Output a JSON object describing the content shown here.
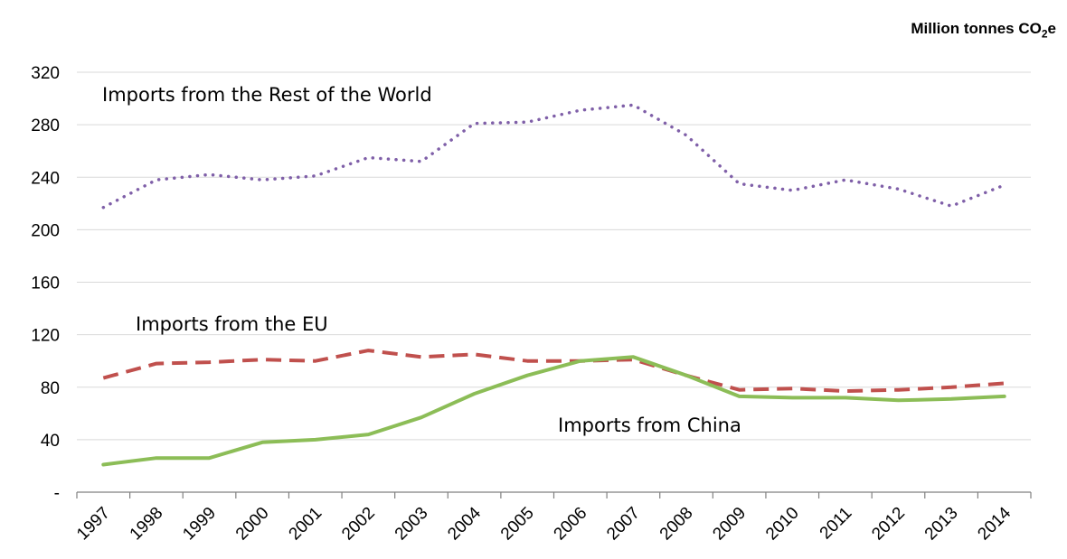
{
  "chart_data": {
    "type": "line",
    "unit_label_main": "Million tonnes CO",
    "unit_label_sub": "2",
    "unit_label_tail": "e",
    "categories": [
      "1997",
      "1998",
      "1999",
      "2000",
      "2001",
      "2002",
      "2003",
      "2004",
      "2005",
      "2006",
      "2007",
      "2008",
      "2009",
      "2010",
      "2011",
      "2012",
      "2013",
      "2014"
    ],
    "y_tick_labels": [
      "-",
      "40",
      "80",
      "120",
      "160",
      "200",
      "240",
      "280",
      "320"
    ],
    "ylim": [
      0,
      320
    ],
    "grid": true,
    "series": [
      {
        "name": "Imports from the Rest of the World",
        "color": "#7f5fa8",
        "style": "dotted",
        "values": [
          217,
          238,
          242,
          238,
          241,
          255,
          252,
          281,
          282,
          291,
          295,
          272,
          235,
          230,
          238,
          231,
          218,
          234
        ]
      },
      {
        "name": "Imports from the EU",
        "color": "#c0504d",
        "style": "dashed",
        "values": [
          87,
          98,
          99,
          101,
          100,
          108,
          103,
          105,
          100,
          100,
          101,
          89,
          78,
          79,
          77,
          78,
          80,
          83
        ]
      },
      {
        "name": "Imports from China",
        "color": "#8cbd57",
        "style": "solid",
        "values": [
          21,
          26,
          26,
          38,
          40,
          44,
          57,
          75,
          89,
          100,
          103,
          89,
          73,
          72,
          72,
          70,
          71,
          73
        ]
      }
    ]
  }
}
